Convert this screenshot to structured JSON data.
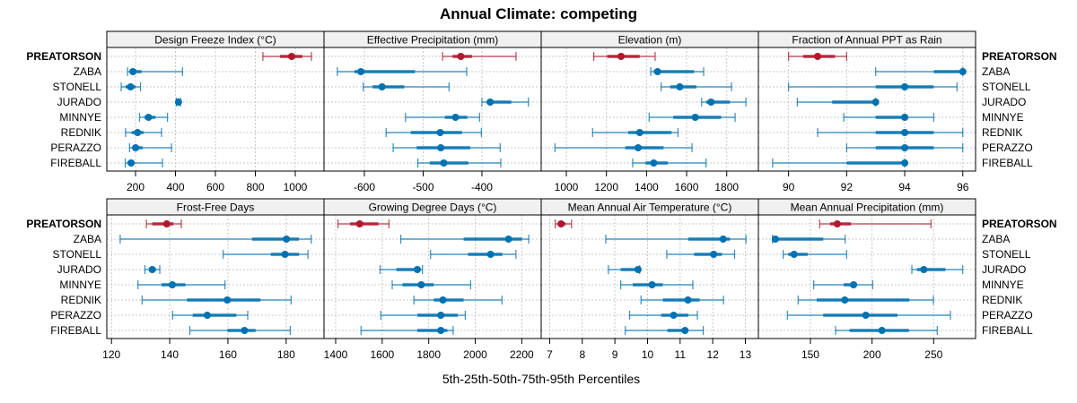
{
  "chart_data": {
    "type": "dotplot-percentile-intervals",
    "title": "Annual Climate: competing",
    "xlabel": "5th-25th-50th-75th-95th Percentiles",
    "rows": [
      "PREATORSON",
      "ZABA",
      "STONELL",
      "JURADO",
      "MINNYE",
      "REDNIK",
      "PERAZZO",
      "FIREBALL"
    ],
    "highlight_row": "PREATORSON",
    "colors": {
      "highlight": "#b2182b",
      "default": "#0072b2",
      "grid": "#c8c8c8",
      "strip": "#f0f0f0"
    },
    "grid": true,
    "layout": "2 rows x 4 panels",
    "panels": [
      {
        "title": "Design Freeze Index (°C)",
        "xlim": [
          56,
          1144
        ],
        "ticks": [
          200,
          400,
          600,
          800,
          1000
        ],
        "data": {
          "PREATORSON": [
            838,
            924,
            982,
            1036,
            1081
          ],
          "ZABA": [
            160,
            170,
            187,
            230,
            435
          ],
          "STONELL": [
            128,
            150,
            175,
            200,
            225
          ],
          "JURADO": [
            405,
            408,
            415,
            420,
            425
          ],
          "MINNYE": [
            220,
            245,
            265,
            300,
            360
          ],
          "REDNIK": [
            150,
            180,
            210,
            240,
            330
          ],
          "PERAZZO": [
            170,
            185,
            200,
            235,
            380
          ],
          "FIREBALL": [
            148,
            160,
            178,
            195,
            335
          ]
        }
      },
      {
        "title": "Effective Precipitation (mm)",
        "xlim": [
          -668.7,
          -299.2
        ],
        "ticks": [
          -600,
          -500,
          -400
        ],
        "data": {
          "PREATORSON": [
            -467,
            -450,
            -436,
            -417,
            -342
          ],
          "ZABA": [
            -646,
            -617,
            -606,
            -514,
            -426
          ],
          "STONELL": [
            -602,
            -586,
            -570,
            -532,
            -456
          ],
          "JURADO": [
            -400,
            -392,
            -386,
            -350,
            -321
          ],
          "MINNYE": [
            -530,
            -463,
            -445,
            -425,
            -404
          ],
          "REDNIK": [
            -563,
            -521,
            -471,
            -434,
            -401
          ],
          "PERAZZO": [
            -551,
            -511,
            -470,
            -420,
            -369
          ],
          "FIREBALL": [
            -509,
            -489,
            -465,
            -423,
            -368
          ]
        }
      },
      {
        "title": "Elevation (m)",
        "xlim": [
          874.6,
          1958
        ],
        "ticks": [
          1000,
          1200,
          1400,
          1600,
          1800
        ],
        "data": {
          "PREATORSON": [
            1137,
            1204,
            1273,
            1366,
            1443
          ],
          "ZABA": [
            1421,
            1436,
            1455,
            1637,
            1685
          ],
          "STONELL": [
            1473,
            1518,
            1566,
            1649,
            1824
          ],
          "JURADO": [
            1675,
            1697,
            1722,
            1816,
            1896
          ],
          "MINNYE": [
            1413,
            1533,
            1643,
            1772,
            1842
          ],
          "REDNIK": [
            1131,
            1309,
            1366,
            1525,
            1557
          ],
          "PERAZZO": [
            943,
            1294,
            1358,
            1485,
            1627
          ],
          "FIREBALL": [
            1331,
            1395,
            1436,
            1506,
            1697
          ]
        }
      },
      {
        "title": "Fraction of Annual PPT as Rain",
        "xlim": [
          88.96,
          96.44
        ],
        "ticks": [
          90,
          92,
          94,
          96
        ],
        "data": {
          "PREATORSON": [
            90,
            90.5,
            91,
            91.6,
            92
          ],
          "ZABA": [
            93,
            95,
            96,
            96,
            96
          ],
          "STONELL": [
            90,
            93,
            94,
            95,
            95.8
          ],
          "JURADO": [
            90.3,
            91.5,
            93,
            93,
            93
          ],
          "MINNYE": [
            91.9,
            93,
            94,
            94,
            95
          ],
          "REDNIK": [
            91,
            93,
            94,
            95,
            96
          ],
          "PERAZZO": [
            92,
            93,
            94,
            95,
            96
          ],
          "FIREBALL": [
            89.45,
            92,
            94,
            94,
            94
          ]
        }
      },
      {
        "title": "Frost-Free Days",
        "xlim": [
          118.4,
          193
        ],
        "ticks": [
          120,
          140,
          160,
          180
        ],
        "data": {
          "PREATORSON": [
            132,
            134,
            139,
            141.3,
            144
          ],
          "ZABA": [
            123,
            168.3,
            180.1,
            184.4,
            188.6
          ],
          "STONELL": [
            158.4,
            174.7,
            179.6,
            184.4,
            187.5
          ],
          "JURADO": [
            131.5,
            133,
            134,
            135.3,
            136.6
          ],
          "MINNYE": [
            129.1,
            137.2,
            140.9,
            145.4,
            159
          ],
          "REDNIK": [
            130.5,
            145.9,
            159.8,
            171.2,
            181.7
          ],
          "PERAZZO": [
            141,
            147.9,
            152.9,
            162.9,
            166.8
          ],
          "FIREBALL": [
            146.9,
            159.8,
            165.7,
            169.5,
            181.4
          ]
        }
      },
      {
        "title": "Growing Degree Days (°C)",
        "xlim": [
          1349.8,
          2283.5
        ],
        "ticks": [
          1400,
          1600,
          1800,
          2000,
          2200
        ],
        "data": {
          "PREATORSON": [
            1410,
            1462,
            1503,
            1584,
            1629
          ],
          "ZABA": [
            1680,
            1950,
            2143,
            2201,
            2230
          ],
          "STONELL": [
            1808,
            1969,
            2066,
            2117,
            2175
          ],
          "JURADO": [
            1591,
            1661,
            1751,
            1764,
            1773
          ],
          "MINNYE": [
            1643,
            1687,
            1768,
            1822,
            1980
          ],
          "REDNIK": [
            1736,
            1822,
            1861,
            1950,
            2115
          ],
          "PERAZZO": [
            1594,
            1751,
            1852,
            1925,
            1957
          ],
          "FIREBALL": [
            1509,
            1751,
            1852,
            1880,
            1905
          ]
        }
      },
      {
        "title": "Mean Annual Air Temperature (°C)",
        "xlim": [
          6.74,
          13.4
        ],
        "ticks": [
          7,
          8,
          9,
          10,
          11,
          12,
          13
        ],
        "data": {
          "PREATORSON": [
            7.17,
            7.26,
            7.35,
            7.49,
            7.67
          ],
          "ZABA": [
            8.72,
            11.25,
            12.32,
            12.53,
            13.02
          ],
          "STONELL": [
            10.59,
            11.43,
            12.03,
            12.28,
            12.67
          ],
          "JURADO": [
            8.8,
            9.18,
            9.71,
            9.73,
            9.76
          ],
          "MINNYE": [
            9.18,
            9.55,
            10.14,
            10.47,
            11.39
          ],
          "REDNIK": [
            9.8,
            10.47,
            11.24,
            11.6,
            12.33
          ],
          "PERAZZO": [
            9.45,
            10.42,
            10.8,
            11.25,
            11.53
          ],
          "FIREBALL": [
            9.32,
            10.61,
            11.15,
            11.22,
            11.71
          ]
        }
      },
      {
        "title": "Mean Annual Precipitation (mm)",
        "xlim": [
          107.8,
          284
        ],
        "ticks": [
          150,
          200,
          250
        ],
        "data": {
          "PREATORSON": [
            157.5,
            166,
            171.8,
            183,
            247.8
          ],
          "ZABA": [
            119.2,
            120.6,
            121.6,
            160.4,
            178.2
          ],
          "STONELL": [
            127.9,
            132,
            136.7,
            147.8,
            179.4
          ],
          "JURADO": [
            232.3,
            236.4,
            242,
            259.5,
            273.6
          ],
          "MINNYE": [
            152.7,
            177,
            185,
            187.9,
            200.5
          ],
          "REDNIK": [
            140,
            155.1,
            177.9,
            230.3,
            249.8
          ],
          "PERAZZO": [
            131.3,
            160.4,
            194.9,
            220.6,
            263.6
          ],
          "FIREBALL": [
            170.4,
            181.8,
            208,
            229.9,
            252.9
          ]
        }
      }
    ]
  }
}
